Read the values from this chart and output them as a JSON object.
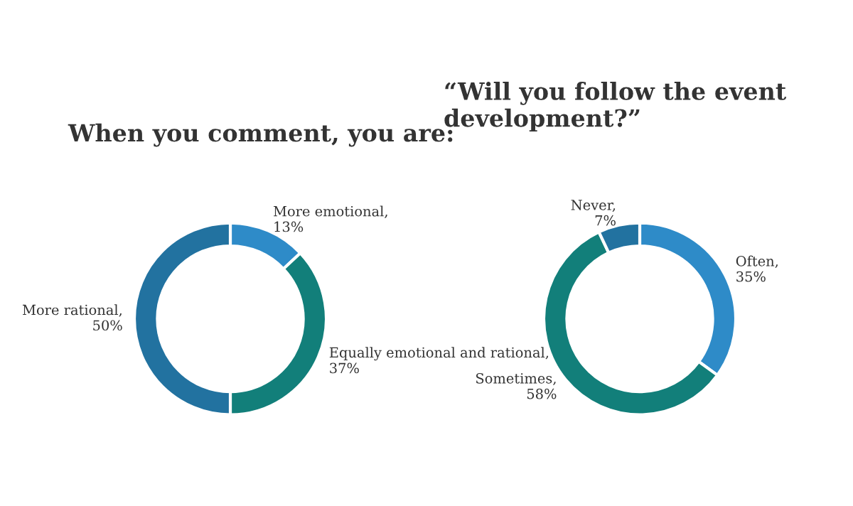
{
  "chart_data": [
    {
      "type": "donut",
      "title": "When you comment, you are:",
      "categories": [
        "More emotional, 13%",
        "Equally emotional and rational, 37%",
        "More rational, 50%"
      ],
      "values": [
        13,
        37,
        50
      ],
      "colors": [
        "#2e8bc8",
        "#127f7a",
        "#2272a0"
      ]
    },
    {
      "type": "donut",
      "title": "“Will you follow the event development?”",
      "categories": [
        "Often, 35%",
        "Sometimes, 58%",
        "Never, 7%"
      ],
      "values": [
        35,
        58,
        7
      ],
      "colors": [
        "#2e8bc8",
        "#127f7a",
        "#2272a0"
      ]
    }
  ]
}
